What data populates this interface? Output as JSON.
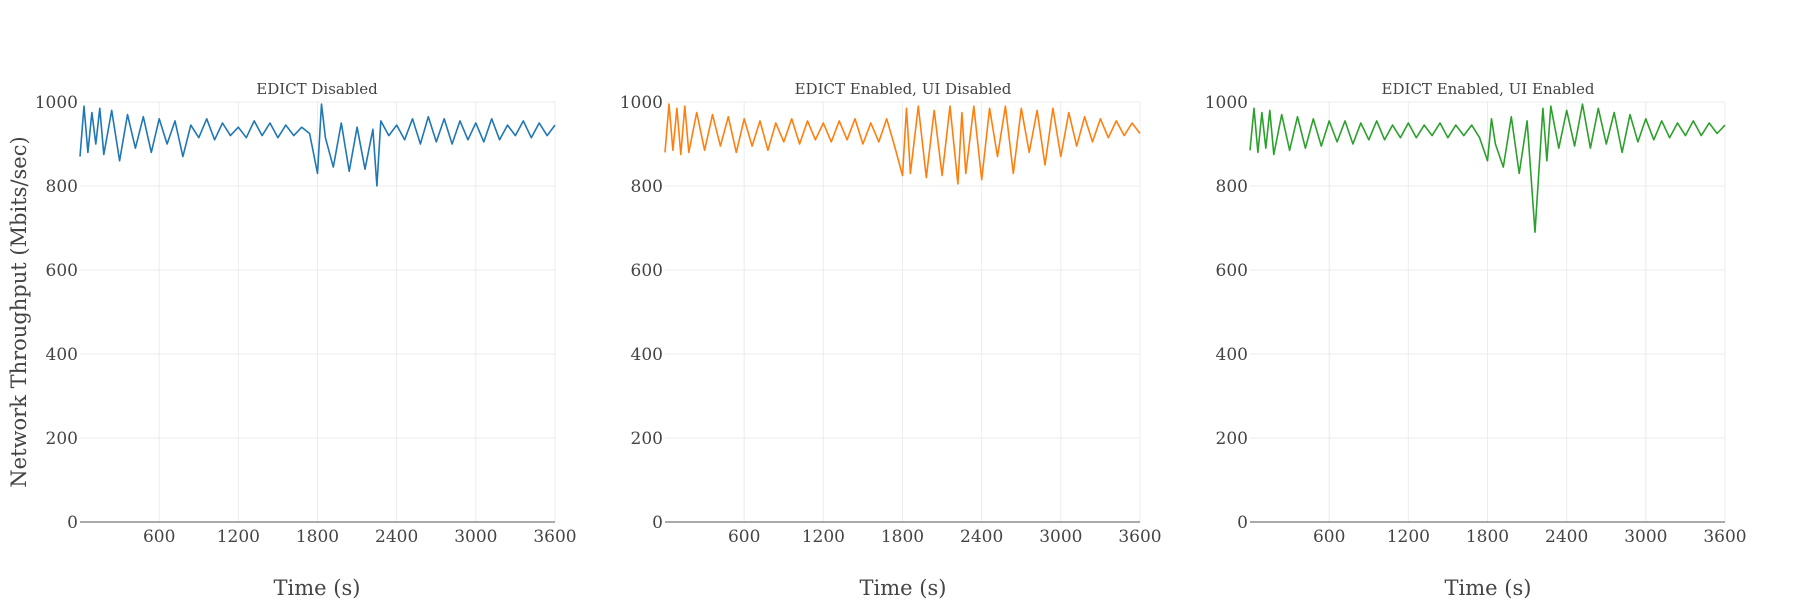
{
  "figure": {
    "ylabel": "Network Throughput (Mbits/sec)"
  },
  "chart_data": [
    {
      "type": "line",
      "title": "EDICT Disabled",
      "xlabel": "Time (s)",
      "ylabel": "Network Throughput (Mbits/sec)",
      "xlim": [
        0,
        3600
      ],
      "ylim": [
        0,
        1000
      ],
      "xticks": [
        600,
        1200,
        1800,
        2400,
        3000,
        3600
      ],
      "yticks": [
        0,
        200,
        400,
        600,
        800,
        1000
      ],
      "grid": true,
      "color": "#1f77b4",
      "series": [
        {
          "x": [
            0,
            30,
            60,
            90,
            120,
            150,
            180,
            240,
            300,
            360,
            420,
            480,
            540,
            600,
            660,
            720,
            780,
            840,
            900,
            960,
            1020,
            1080,
            1140,
            1200,
            1260,
            1320,
            1380,
            1440,
            1500,
            1560,
            1620,
            1680,
            1740,
            1800,
            1830,
            1860,
            1920,
            1980,
            2040,
            2100,
            2160,
            2220,
            2250,
            2280,
            2340,
            2400,
            2460,
            2520,
            2580,
            2640,
            2700,
            2760,
            2820,
            2880,
            2940,
            3000,
            3060,
            3120,
            3180,
            3240,
            3300,
            3360,
            3420,
            3480,
            3540,
            3600
          ],
          "y": [
            870,
            990,
            880,
            975,
            900,
            985,
            875,
            980,
            860,
            970,
            890,
            965,
            880,
            960,
            900,
            955,
            870,
            945,
            915,
            960,
            910,
            950,
            920,
            940,
            915,
            955,
            920,
            950,
            915,
            945,
            920,
            940,
            925,
            830,
            995,
            915,
            845,
            950,
            835,
            940,
            840,
            935,
            800,
            955,
            920,
            945,
            910,
            960,
            900,
            965,
            905,
            960,
            900,
            955,
            910,
            950,
            905,
            960,
            910,
            945,
            920,
            955,
            915,
            950,
            920,
            945
          ]
        }
      ]
    },
    {
      "type": "line",
      "title": "EDICT Enabled, UI Disabled",
      "xlabel": "Time (s)",
      "ylabel": "",
      "xlim": [
        0,
        3600
      ],
      "ylim": [
        0,
        1000
      ],
      "xticks": [
        600,
        1200,
        1800,
        2400,
        3000,
        3600
      ],
      "yticks": [
        0,
        200,
        400,
        600,
        800,
        1000
      ],
      "grid": true,
      "color": "#ff7f0e",
      "series": [
        {
          "x": [
            0,
            30,
            60,
            90,
            120,
            150,
            180,
            240,
            300,
            360,
            420,
            480,
            540,
            600,
            660,
            720,
            780,
            840,
            900,
            960,
            1020,
            1080,
            1140,
            1200,
            1260,
            1320,
            1380,
            1440,
            1500,
            1560,
            1620,
            1680,
            1740,
            1800,
            1830,
            1860,
            1920,
            1980,
            2040,
            2100,
            2160,
            2220,
            2250,
            2280,
            2340,
            2400,
            2460,
            2520,
            2580,
            2640,
            2700,
            2760,
            2820,
            2880,
            2940,
            3000,
            3060,
            3120,
            3180,
            3240,
            3300,
            3360,
            3420,
            3480,
            3540,
            3600
          ],
          "y": [
            880,
            995,
            885,
            985,
            875,
            990,
            880,
            975,
            885,
            970,
            895,
            965,
            880,
            960,
            895,
            955,
            885,
            950,
            905,
            960,
            900,
            955,
            910,
            950,
            905,
            955,
            910,
            960,
            900,
            950,
            905,
            960,
            895,
            825,
            985,
            830,
            990,
            820,
            980,
            825,
            990,
            805,
            975,
            830,
            990,
            815,
            985,
            870,
            990,
            830,
            985,
            880,
            980,
            850,
            985,
            870,
            975,
            895,
            965,
            905,
            960,
            915,
            955,
            920,
            950,
            925
          ]
        }
      ]
    },
    {
      "type": "line",
      "title": "EDICT Enabled, UI Enabled",
      "xlabel": "Time (s)",
      "ylabel": "",
      "xlim": [
        0,
        3600
      ],
      "ylim": [
        0,
        1000
      ],
      "xticks": [
        600,
        1200,
        1800,
        2400,
        3000,
        3600
      ],
      "yticks": [
        0,
        200,
        400,
        600,
        800,
        1000
      ],
      "grid": true,
      "color": "#2ca02c",
      "series": [
        {
          "x": [
            0,
            30,
            60,
            90,
            120,
            150,
            180,
            240,
            300,
            360,
            420,
            480,
            540,
            600,
            660,
            720,
            780,
            840,
            900,
            960,
            1020,
            1080,
            1140,
            1200,
            1260,
            1320,
            1380,
            1440,
            1500,
            1560,
            1620,
            1680,
            1740,
            1800,
            1830,
            1860,
            1920,
            1980,
            2040,
            2100,
            2160,
            2220,
            2250,
            2280,
            2340,
            2400,
            2460,
            2520,
            2580,
            2640,
            2700,
            2760,
            2820,
            2880,
            2940,
            3000,
            3060,
            3120,
            3180,
            3240,
            3300,
            3360,
            3420,
            3480,
            3540,
            3600
          ],
          "y": [
            885,
            985,
            880,
            975,
            890,
            980,
            875,
            970,
            885,
            965,
            890,
            960,
            895,
            955,
            905,
            955,
            900,
            950,
            910,
            955,
            910,
            945,
            915,
            950,
            915,
            945,
            920,
            950,
            915,
            945,
            920,
            945,
            915,
            860,
            960,
            900,
            845,
            965,
            830,
            955,
            690,
            985,
            860,
            990,
            890,
            980,
            895,
            995,
            890,
            985,
            900,
            975,
            880,
            970,
            905,
            960,
            910,
            955,
            915,
            950,
            920,
            955,
            920,
            950,
            925,
            945
          ]
        }
      ]
    }
  ]
}
